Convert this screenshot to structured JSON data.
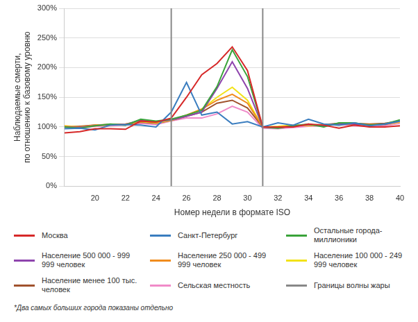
{
  "chart_data": {
    "type": "line",
    "y_label": [
      "Наблюдаемые смерти,",
      "по отношению к базовому уровню"
    ],
    "x_label": "Номер недели в формате ISO",
    "note": "*Два самых больших города показаны отдельно",
    "x": [
      18,
      19,
      20,
      21,
      22,
      23,
      24,
      25,
      26,
      27,
      28,
      29,
      30,
      31,
      32,
      33,
      34,
      35,
      36,
      37,
      38,
      39,
      40
    ],
    "xlim": [
      18,
      40
    ],
    "xticks": [
      20,
      22,
      24,
      26,
      28,
      30,
      32,
      34,
      36,
      38,
      40
    ],
    "ylim": [
      0,
      300
    ],
    "yticks": [
      {
        "value": 0,
        "label": "0%"
      },
      {
        "value": 50,
        "label": "50%"
      },
      {
        "value": 100,
        "label": "100%"
      },
      {
        "value": 150,
        "label": "150%"
      },
      {
        "value": 200,
        "label": "200%"
      },
      {
        "value": 250,
        "label": "250%"
      },
      {
        "value": 300,
        "label": "300%"
      }
    ],
    "grid": true,
    "legend": "bottom",
    "series": [
      {
        "name": "Москва",
        "color": "#d62828",
        "values": [
          90,
          92,
          97,
          97,
          96,
          110,
          108,
          115,
          150,
          188,
          207,
          235,
          195,
          100,
          100,
          100,
          105,
          103,
          98,
          103,
          100,
          100,
          102
        ]
      },
      {
        "name": "Санкт-Петербург",
        "color": "#3a7dbf",
        "values": [
          97,
          98,
          95,
          103,
          104,
          103,
          100,
          125,
          175,
          120,
          125,
          105,
          109,
          100,
          107,
          103,
          113,
          105,
          103,
          107,
          102,
          105,
          110
        ]
      },
      {
        "name": "Остальные города-миллионики",
        "color": "#3aa33a",
        "values": [
          100,
          98,
          102,
          105,
          103,
          113,
          110,
          113,
          120,
          128,
          168,
          230,
          185,
          100,
          98,
          102,
          105,
          100,
          107,
          107,
          103,
          105,
          112
        ]
      },
      {
        "name": "Население 500 000 - 999 999 человек",
        "color": "#8e44ad",
        "values": [
          100,
          99,
          102,
          104,
          104,
          112,
          109,
          112,
          118,
          125,
          165,
          210,
          165,
          100,
          99,
          101,
          104,
          102,
          106,
          105,
          103,
          104,
          110
        ]
      },
      {
        "name": "Население 250 000 - 499 999 человек",
        "color": "#f08c1e",
        "values": [
          101,
          100,
          103,
          104,
          105,
          110,
          108,
          112,
          120,
          130,
          145,
          155,
          140,
          100,
          100,
          102,
          103,
          103,
          105,
          104,
          104,
          105,
          109
        ]
      },
      {
        "name": "Население 100 000 - 249 999 человек",
        "color": "#f2e218",
        "values": [
          102,
          100,
          102,
          103,
          105,
          109,
          107,
          111,
          120,
          130,
          150,
          167,
          145,
          100,
          101,
          103,
          102,
          104,
          105,
          105,
          103,
          104,
          108
        ]
      },
      {
        "name": "Население менее 100 тыс. человек",
        "color": "#a0522d",
        "values": [
          101,
          101,
          103,
          104,
          104,
          108,
          106,
          111,
          118,
          125,
          140,
          145,
          132,
          100,
          100,
          102,
          103,
          104,
          106,
          106,
          105,
          106,
          110
        ]
      },
      {
        "name": "Сельская местность",
        "color": "#f08ac8",
        "values": [
          99,
          98,
          101,
          102,
          103,
          106,
          104,
          110,
          115,
          115,
          122,
          135,
          125,
          98,
          97,
          99,
          101,
          102,
          104,
          102,
          101,
          102,
          106
        ]
      },
      {
        "name": "Границы волны жары",
        "color": "#888888",
        "type": "vline",
        "x": [
          25,
          31
        ]
      }
    ]
  }
}
